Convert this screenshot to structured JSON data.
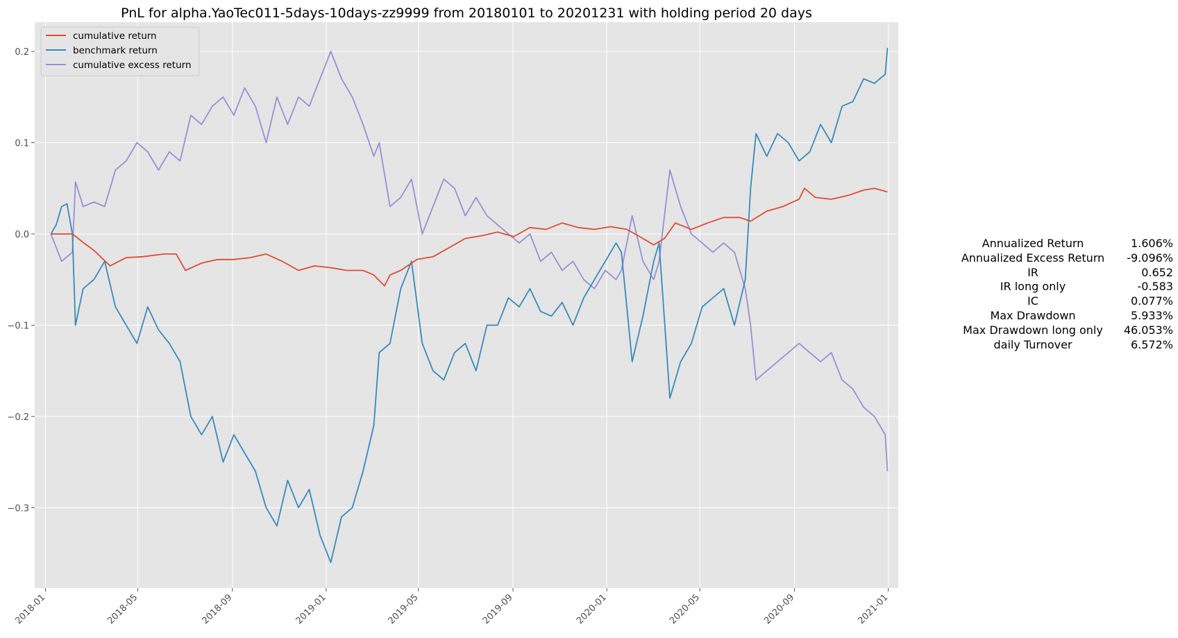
{
  "colors": {
    "background": "#ffffff",
    "plot_background": "#e5e5e5",
    "grid": "#ffffff",
    "cumulative_return": "#e24a33",
    "benchmark_return": "#348abd",
    "cumulative_excess_return": "#988ed5"
  },
  "chart_data": {
    "type": "line",
    "title": "PnL for alpha.YaoTec011-5days-10days-zz9999 from 20180101 to 20201231 with holding period 20 days",
    "xlabel": "",
    "ylabel": "",
    "grid": true,
    "legend_position": "top-left",
    "xlim": [
      "2017-12-18",
      "2021-01-14"
    ],
    "ylim": [
      -0.388,
      0.232
    ],
    "x_ticks": [
      "2018-01",
      "2018-05",
      "2018-09",
      "2019-01",
      "2019-05",
      "2019-09",
      "2020-01",
      "2020-05",
      "2020-09",
      "2021-01"
    ],
    "y_ticks": [
      -0.3,
      -0.2,
      -0.1,
      0.0,
      0.1,
      0.2
    ],
    "y_tick_labels": [
      "−0.3",
      "−0.2",
      "−0.1",
      "0.0",
      "0.1",
      "0.2"
    ],
    "series": [
      {
        "name": "cumulative return",
        "color": "#e24a33",
        "points": [
          [
            "2018-01-08",
            0.0
          ],
          [
            "2018-02-05",
            0.0
          ],
          [
            "2018-02-20",
            -0.01
          ],
          [
            "2018-03-05",
            -0.018
          ],
          [
            "2018-03-26",
            -0.035
          ],
          [
            "2018-04-16",
            -0.026
          ],
          [
            "2018-05-07",
            -0.025
          ],
          [
            "2018-06-04",
            -0.022
          ],
          [
            "2018-06-20",
            -0.022
          ],
          [
            "2018-07-02",
            -0.04
          ],
          [
            "2018-07-23",
            -0.032
          ],
          [
            "2018-08-13",
            -0.028
          ],
          [
            "2018-09-03",
            -0.028
          ],
          [
            "2018-09-24",
            -0.026
          ],
          [
            "2018-10-15",
            -0.022
          ],
          [
            "2018-11-05",
            -0.03
          ],
          [
            "2018-11-26",
            -0.04
          ],
          [
            "2018-12-17",
            -0.035
          ],
          [
            "2019-01-07",
            -0.037
          ],
          [
            "2019-01-28",
            -0.04
          ],
          [
            "2019-02-18",
            -0.04
          ],
          [
            "2019-03-04",
            -0.045
          ],
          [
            "2019-03-18",
            -0.057
          ],
          [
            "2019-03-25",
            -0.045
          ],
          [
            "2019-04-08",
            -0.04
          ],
          [
            "2019-04-29",
            -0.028
          ],
          [
            "2019-05-20",
            -0.025
          ],
          [
            "2019-06-10",
            -0.015
          ],
          [
            "2019-07-01",
            -0.005
          ],
          [
            "2019-07-22",
            -0.002
          ],
          [
            "2019-08-12",
            0.002
          ],
          [
            "2019-09-02",
            -0.003
          ],
          [
            "2019-09-23",
            0.007
          ],
          [
            "2019-10-14",
            0.005
          ],
          [
            "2019-11-04",
            0.012
          ],
          [
            "2019-11-25",
            0.007
          ],
          [
            "2019-12-16",
            0.005
          ],
          [
            "2020-01-06",
            0.008
          ],
          [
            "2020-01-27",
            0.005
          ],
          [
            "2020-02-17",
            -0.005
          ],
          [
            "2020-03-02",
            -0.012
          ],
          [
            "2020-03-16",
            -0.005
          ],
          [
            "2020-03-30",
            0.012
          ],
          [
            "2020-04-20",
            0.005
          ],
          [
            "2020-05-11",
            0.012
          ],
          [
            "2020-06-01",
            0.018
          ],
          [
            "2020-06-22",
            0.018
          ],
          [
            "2020-07-06",
            0.014
          ],
          [
            "2020-07-27",
            0.025
          ],
          [
            "2020-08-17",
            0.03
          ],
          [
            "2020-09-07",
            0.038
          ],
          [
            "2020-09-14",
            0.05
          ],
          [
            "2020-09-28",
            0.04
          ],
          [
            "2020-10-19",
            0.038
          ],
          [
            "2020-11-09",
            0.042
          ],
          [
            "2020-11-30",
            0.048
          ],
          [
            "2020-12-14",
            0.05
          ],
          [
            "2020-12-31",
            0.046
          ]
        ]
      },
      {
        "name": "benchmark return",
        "color": "#348abd",
        "points": [
          [
            "2018-01-08",
            0.0
          ],
          [
            "2018-01-15",
            0.01
          ],
          [
            "2018-01-22",
            0.03
          ],
          [
            "2018-01-29",
            0.033
          ],
          [
            "2018-02-05",
            0.0
          ],
          [
            "2018-02-09",
            -0.1
          ],
          [
            "2018-02-19",
            -0.06
          ],
          [
            "2018-03-05",
            -0.05
          ],
          [
            "2018-03-19",
            -0.03
          ],
          [
            "2018-04-02",
            -0.08
          ],
          [
            "2018-04-16",
            -0.1
          ],
          [
            "2018-04-30",
            -0.12
          ],
          [
            "2018-05-14",
            -0.08
          ],
          [
            "2018-05-28",
            -0.105
          ],
          [
            "2018-06-11",
            -0.12
          ],
          [
            "2018-06-25",
            -0.14
          ],
          [
            "2018-07-09",
            -0.2
          ],
          [
            "2018-07-23",
            -0.22
          ],
          [
            "2018-08-06",
            -0.2
          ],
          [
            "2018-08-20",
            -0.25
          ],
          [
            "2018-09-03",
            -0.22
          ],
          [
            "2018-09-17",
            -0.24
          ],
          [
            "2018-10-01",
            -0.26
          ],
          [
            "2018-10-15",
            -0.3
          ],
          [
            "2018-10-29",
            -0.32
          ],
          [
            "2018-11-12",
            -0.27
          ],
          [
            "2018-11-26",
            -0.3
          ],
          [
            "2018-12-10",
            -0.28
          ],
          [
            "2018-12-24",
            -0.33
          ],
          [
            "2019-01-07",
            -0.36
          ],
          [
            "2019-01-21",
            -0.31
          ],
          [
            "2019-02-04",
            -0.3
          ],
          [
            "2019-02-18",
            -0.26
          ],
          [
            "2019-03-04",
            -0.21
          ],
          [
            "2019-03-11",
            -0.13
          ],
          [
            "2019-03-25",
            -0.12
          ],
          [
            "2019-04-08",
            -0.06
          ],
          [
            "2019-04-22",
            -0.03
          ],
          [
            "2019-05-06",
            -0.12
          ],
          [
            "2019-05-20",
            -0.15
          ],
          [
            "2019-06-03",
            -0.16
          ],
          [
            "2019-06-17",
            -0.13
          ],
          [
            "2019-07-01",
            -0.12
          ],
          [
            "2019-07-15",
            -0.15
          ],
          [
            "2019-07-29",
            -0.1
          ],
          [
            "2019-08-12",
            -0.1
          ],
          [
            "2019-08-26",
            -0.07
          ],
          [
            "2019-09-09",
            -0.08
          ],
          [
            "2019-09-23",
            -0.06
          ],
          [
            "2019-10-07",
            -0.085
          ],
          [
            "2019-10-21",
            -0.09
          ],
          [
            "2019-11-04",
            -0.075
          ],
          [
            "2019-11-18",
            -0.1
          ],
          [
            "2019-12-02",
            -0.07
          ],
          [
            "2019-12-16",
            -0.05
          ],
          [
            "2019-12-30",
            -0.03
          ],
          [
            "2020-01-13",
            -0.01
          ],
          [
            "2020-01-20",
            -0.02
          ],
          [
            "2020-02-03",
            -0.14
          ],
          [
            "2020-02-17",
            -0.09
          ],
          [
            "2020-03-02",
            -0.03
          ],
          [
            "2020-03-09",
            -0.01
          ],
          [
            "2020-03-23",
            -0.18
          ],
          [
            "2020-04-06",
            -0.14
          ],
          [
            "2020-04-20",
            -0.12
          ],
          [
            "2020-05-04",
            -0.08
          ],
          [
            "2020-05-18",
            -0.07
          ],
          [
            "2020-06-01",
            -0.06
          ],
          [
            "2020-06-15",
            -0.1
          ],
          [
            "2020-06-29",
            -0.05
          ],
          [
            "2020-07-06",
            0.05
          ],
          [
            "2020-07-13",
            0.11
          ],
          [
            "2020-07-27",
            0.085
          ],
          [
            "2020-08-10",
            0.11
          ],
          [
            "2020-08-24",
            0.1
          ],
          [
            "2020-09-07",
            0.08
          ],
          [
            "2020-09-21",
            0.09
          ],
          [
            "2020-10-05",
            0.12
          ],
          [
            "2020-10-19",
            0.1
          ],
          [
            "2020-11-02",
            0.14
          ],
          [
            "2020-11-16",
            0.145
          ],
          [
            "2020-11-30",
            0.17
          ],
          [
            "2020-12-14",
            0.165
          ],
          [
            "2020-12-28",
            0.175
          ],
          [
            "2020-12-31",
            0.204
          ]
        ]
      },
      {
        "name": "cumulative excess return",
        "color": "#988ed5",
        "points": [
          [
            "2018-01-08",
            0.0
          ],
          [
            "2018-01-22",
            -0.03
          ],
          [
            "2018-02-05",
            -0.02
          ],
          [
            "2018-02-09",
            0.057
          ],
          [
            "2018-02-19",
            0.03
          ],
          [
            "2018-03-05",
            0.035
          ],
          [
            "2018-03-19",
            0.03
          ],
          [
            "2018-04-02",
            0.07
          ],
          [
            "2018-04-16",
            0.08
          ],
          [
            "2018-04-30",
            0.1
          ],
          [
            "2018-05-14",
            0.09
          ],
          [
            "2018-05-28",
            0.07
          ],
          [
            "2018-06-11",
            0.09
          ],
          [
            "2018-06-25",
            0.08
          ],
          [
            "2018-07-09",
            0.13
          ],
          [
            "2018-07-23",
            0.12
          ],
          [
            "2018-08-06",
            0.14
          ],
          [
            "2018-08-20",
            0.15
          ],
          [
            "2018-09-03",
            0.13
          ],
          [
            "2018-09-17",
            0.16
          ],
          [
            "2018-10-01",
            0.14
          ],
          [
            "2018-10-15",
            0.1
          ],
          [
            "2018-10-29",
            0.15
          ],
          [
            "2018-11-12",
            0.12
          ],
          [
            "2018-11-26",
            0.15
          ],
          [
            "2018-12-10",
            0.14
          ],
          [
            "2018-12-24",
            0.17
          ],
          [
            "2019-01-07",
            0.2
          ],
          [
            "2019-01-21",
            0.17
          ],
          [
            "2019-02-04",
            0.15
          ],
          [
            "2019-02-18",
            0.12
          ],
          [
            "2019-03-04",
            0.085
          ],
          [
            "2019-03-11",
            0.1
          ],
          [
            "2019-03-25",
            0.03
          ],
          [
            "2019-04-08",
            0.04
          ],
          [
            "2019-04-22",
            0.06
          ],
          [
            "2019-05-06",
            0.0
          ],
          [
            "2019-05-20",
            0.03
          ],
          [
            "2019-06-03",
            0.06
          ],
          [
            "2019-06-17",
            0.05
          ],
          [
            "2019-07-01",
            0.02
          ],
          [
            "2019-07-15",
            0.04
          ],
          [
            "2019-07-29",
            0.02
          ],
          [
            "2019-08-12",
            0.01
          ],
          [
            "2019-08-26",
            0.0
          ],
          [
            "2019-09-09",
            -0.01
          ],
          [
            "2019-09-23",
            0.0
          ],
          [
            "2019-10-07",
            -0.03
          ],
          [
            "2019-10-21",
            -0.02
          ],
          [
            "2019-11-04",
            -0.04
          ],
          [
            "2019-11-18",
            -0.03
          ],
          [
            "2019-12-02",
            -0.05
          ],
          [
            "2019-12-16",
            -0.06
          ],
          [
            "2019-12-30",
            -0.04
          ],
          [
            "2020-01-13",
            -0.05
          ],
          [
            "2020-01-20",
            -0.04
          ],
          [
            "2020-02-03",
            0.02
          ],
          [
            "2020-02-17",
            -0.03
          ],
          [
            "2020-03-02",
            -0.05
          ],
          [
            "2020-03-09",
            -0.03
          ],
          [
            "2020-03-23",
            0.07
          ],
          [
            "2020-04-06",
            0.03
          ],
          [
            "2020-04-20",
            0.0
          ],
          [
            "2020-05-04",
            -0.01
          ],
          [
            "2020-05-18",
            -0.02
          ],
          [
            "2020-06-01",
            -0.01
          ],
          [
            "2020-06-15",
            -0.02
          ],
          [
            "2020-06-29",
            -0.06
          ],
          [
            "2020-07-06",
            -0.1
          ],
          [
            "2020-07-13",
            -0.16
          ],
          [
            "2020-07-27",
            -0.15
          ],
          [
            "2020-08-10",
            -0.14
          ],
          [
            "2020-08-24",
            -0.13
          ],
          [
            "2020-09-07",
            -0.12
          ],
          [
            "2020-09-21",
            -0.13
          ],
          [
            "2020-10-05",
            -0.14
          ],
          [
            "2020-10-19",
            -0.13
          ],
          [
            "2020-11-02",
            -0.16
          ],
          [
            "2020-11-16",
            -0.17
          ],
          [
            "2020-11-30",
            -0.19
          ],
          [
            "2020-12-14",
            -0.2
          ],
          [
            "2020-12-28",
            -0.22
          ],
          [
            "2020-12-31",
            -0.26
          ]
        ]
      }
    ]
  },
  "stats": [
    {
      "label": "Annualized Return",
      "value": "1.606%"
    },
    {
      "label": "Annualized Excess Return",
      "value": "-9.096%"
    },
    {
      "label": "IR",
      "value": "0.652"
    },
    {
      "label": "IR long only",
      "value": "-0.583"
    },
    {
      "label": "IC",
      "value": "0.077%"
    },
    {
      "label": "Max Drawdown",
      "value": "5.933%"
    },
    {
      "label": "Max Drawdown long only",
      "value": "46.053%"
    },
    {
      "label": "daily Turnover",
      "value": "6.572%"
    }
  ]
}
